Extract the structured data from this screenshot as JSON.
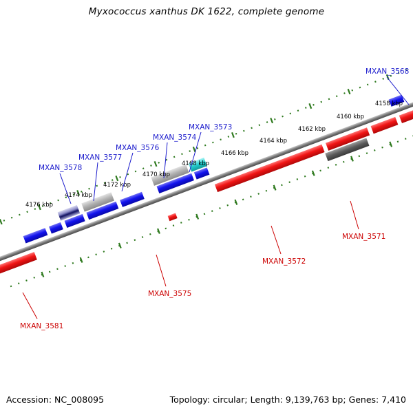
{
  "title": "Myxococcus xanthus DK 1622, complete genome",
  "footer": {
    "accession": "Accession: NC_008095",
    "summary": "Topology: circular; Length: 9,139,763 bp; Genes: 7,410"
  },
  "colors": {
    "background": "#ffffff",
    "backbone": "#7a7a7a",
    "ruler_tick": "#2f7a1f",
    "label_forward": "#1a1acc",
    "label_reverse": "#cc0000",
    "gene_forward": "#1010e8",
    "gene_reverse": "#ee1010",
    "gene_gray": "#aaaaaa",
    "gene_dark": "#555555",
    "gene_cyan": "#22cccc",
    "gene_navy": "#223388"
  },
  "ticks": [
    "4176 kbp",
    "4174 kbp",
    "4172 kbp",
    "4170 kbp",
    "4168 kbp",
    "4166 kbp",
    "4164 kbp",
    "4162 kbp",
    "4160 kbp",
    "4158 kbp"
  ],
  "gene_labels": [
    {
      "text": "MXAN_3568",
      "strand": "forward"
    },
    {
      "text": "MXAN_3573",
      "strand": "forward"
    },
    {
      "text": "MXAN_3574",
      "strand": "forward"
    },
    {
      "text": "MXAN_3576",
      "strand": "forward"
    },
    {
      "text": "MXAN_3577",
      "strand": "forward"
    },
    {
      "text": "MXAN_3578",
      "strand": "forward"
    },
    {
      "text": "MXAN_3571",
      "strand": "reverse"
    },
    {
      "text": "MXAN_3572",
      "strand": "reverse"
    },
    {
      "text": "MXAN_3575",
      "strand": "reverse"
    },
    {
      "text": "MXAN_3581",
      "strand": "reverse"
    }
  ]
}
